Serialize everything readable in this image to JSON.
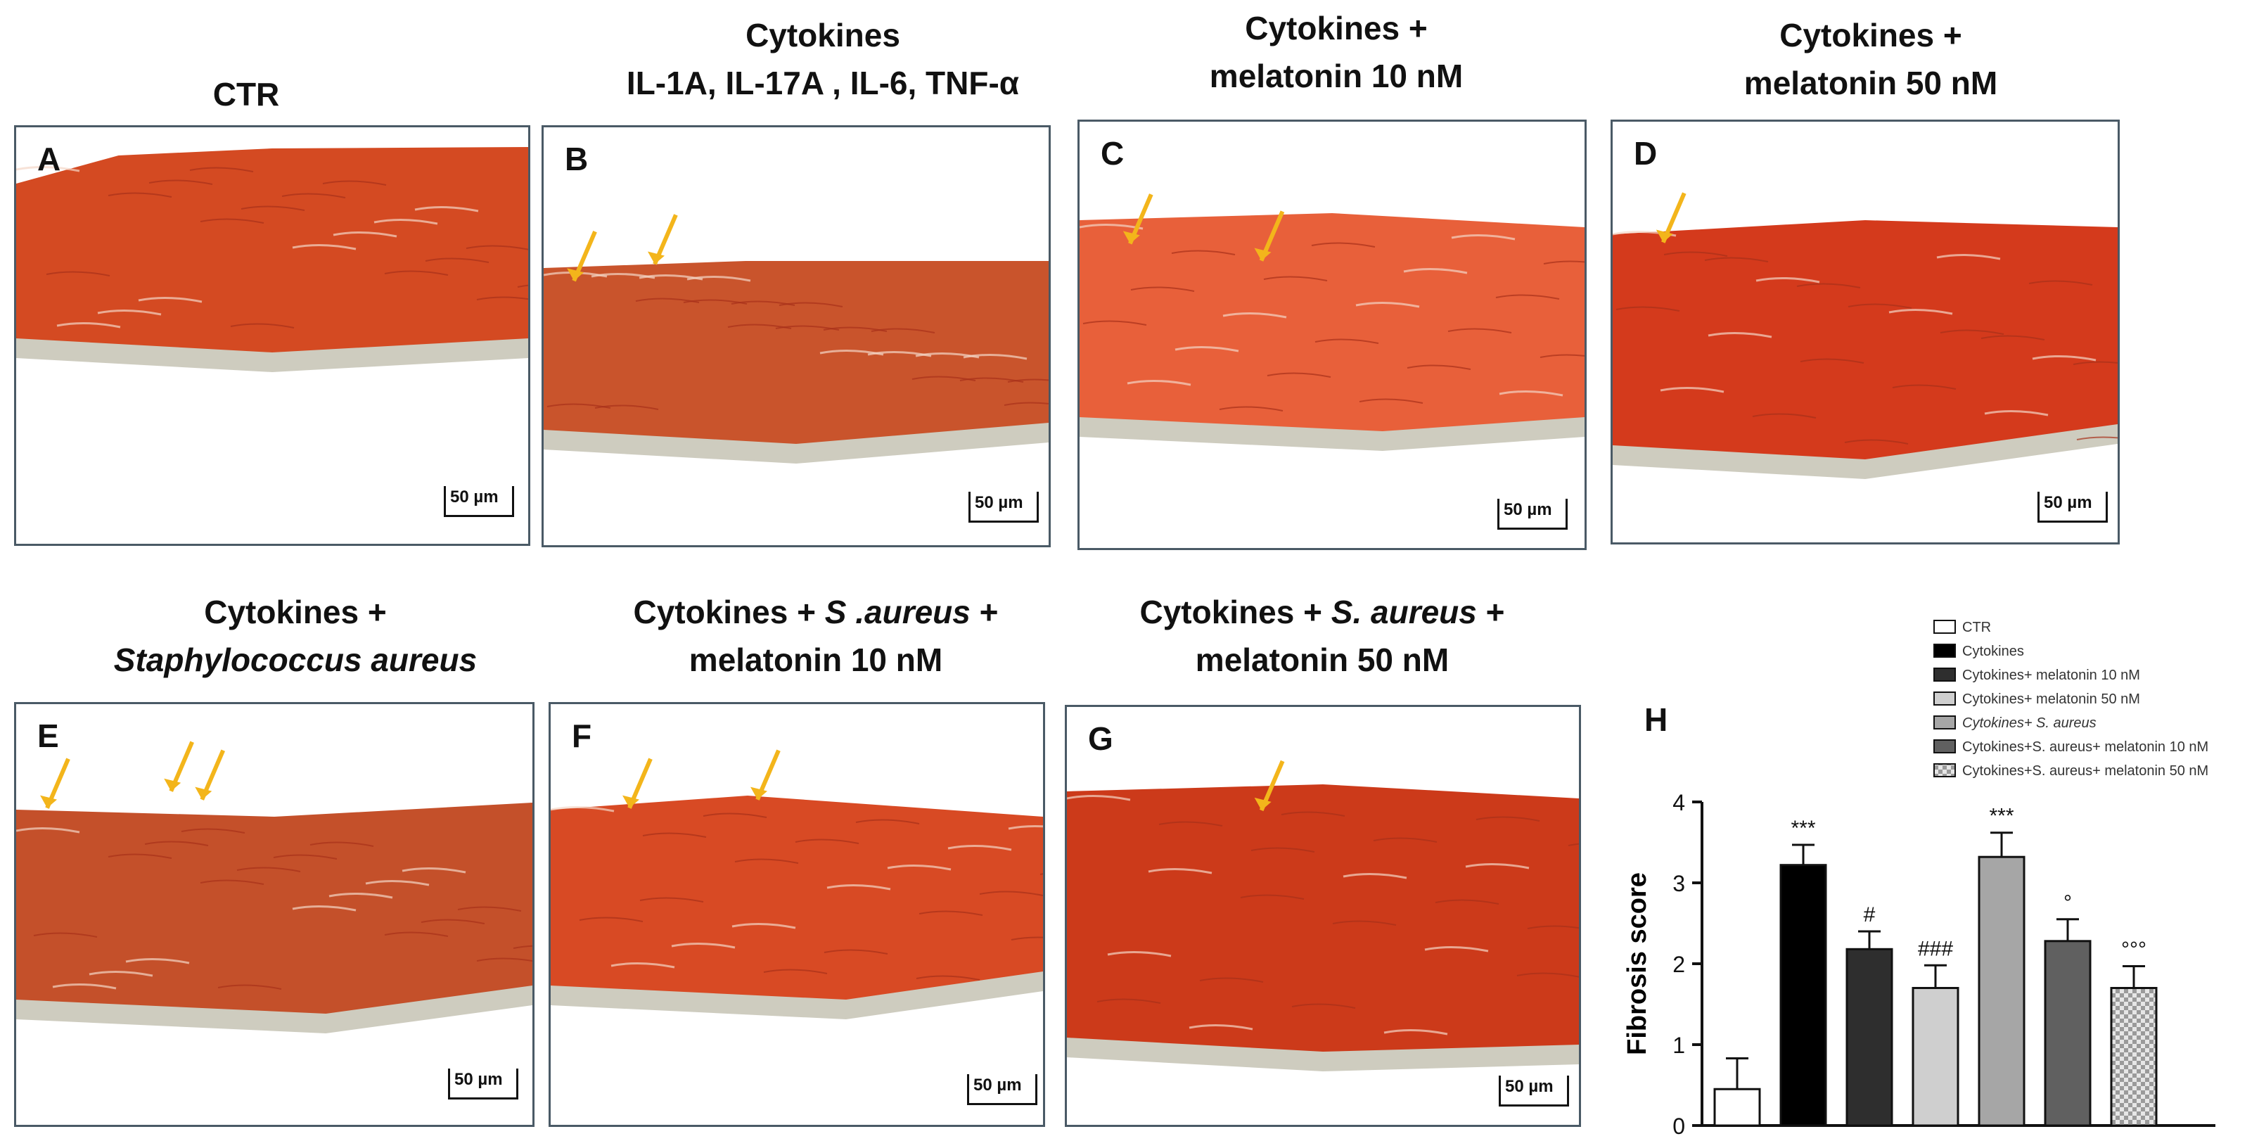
{
  "panels": [
    {
      "letter": "A",
      "title": [
        "CTR"
      ],
      "scale": "50 µm",
      "arrows": 0,
      "tone": "#d44a22"
    },
    {
      "letter": "B",
      "title": [
        "Cytokines",
        "IL-1A, IL-17A , IL-6, TNF-α"
      ],
      "scale": "50 µm",
      "arrows": 2,
      "tone": "#c9542c"
    },
    {
      "letter": "C",
      "title": [
        "Cytokines +",
        "melatonin 10 nM"
      ],
      "scale": "50 µm",
      "arrows": 2,
      "tone": "#e8603a"
    },
    {
      "letter": "D",
      "title": [
        "Cytokines +",
        "melatonin 50 nM"
      ],
      "scale": "50 µm",
      "arrows": 1,
      "tone": "#d43a1c"
    },
    {
      "letter": "E",
      "title_line1": "Cytokines +",
      "title_line2": "Staphylococcus aureus",
      "scale": "50 µm",
      "arrows": 3,
      "tone": "#c4502a"
    },
    {
      "letter": "F",
      "title_a": "Cytokines + ",
      "title_b": "S .aureus",
      "title_c": " +",
      "title_line2": "melatonin 10 nM",
      "scale": "50 µm",
      "arrows": 2,
      "tone": "#d84a24"
    },
    {
      "letter": "G",
      "title_a": "Cytokines + ",
      "title_b": "S. aureus",
      "title_c": " +",
      "title_line2": "melatonin 50 nM",
      "scale": "50 µm",
      "arrows": 1,
      "tone": "#cc3a1a"
    }
  ],
  "chart_label": "H",
  "chart_data": {
    "type": "bar",
    "ylabel": "Fibrosis score",
    "ylim": [
      0,
      4
    ],
    "yticks": [
      "0",
      "1",
      "2",
      "3",
      "4"
    ],
    "categories": [
      "CTR",
      "Cytokines",
      "Cytokines+ melatonin 10 nM",
      "Cytokines+ melatonin 50 nM",
      "Cytokines+ S. aureus",
      "Cytokines+S. aureus+ melatonin 10 nM",
      "Cytokines+S. aureus+ melatonin 50 nM"
    ],
    "values": [
      0.45,
      3.22,
      2.18,
      1.7,
      3.32,
      2.28,
      1.7
    ],
    "errors": [
      0.38,
      0.25,
      0.22,
      0.28,
      0.3,
      0.27,
      0.27
    ],
    "annotations": [
      "",
      "***",
      "#",
      "###",
      "***",
      "°",
      "°°°"
    ],
    "colors": [
      "#ffffff",
      "#000000",
      "#2e2e2e",
      "#cfcfcf",
      "#a6a6a6",
      "#606060",
      "checker"
    ],
    "legend": [
      "CTR",
      "Cytokines",
      "Cytokines+ melatonin 10 nM",
      "Cytokines+ melatonin 50 nM",
      "Cytokines+ S. aureus",
      "Cytokines+S. aureus+ melatonin 10 nM",
      "Cytokines+S. aureus+ melatonin 50 nM"
    ],
    "legend_position": "top-right"
  }
}
